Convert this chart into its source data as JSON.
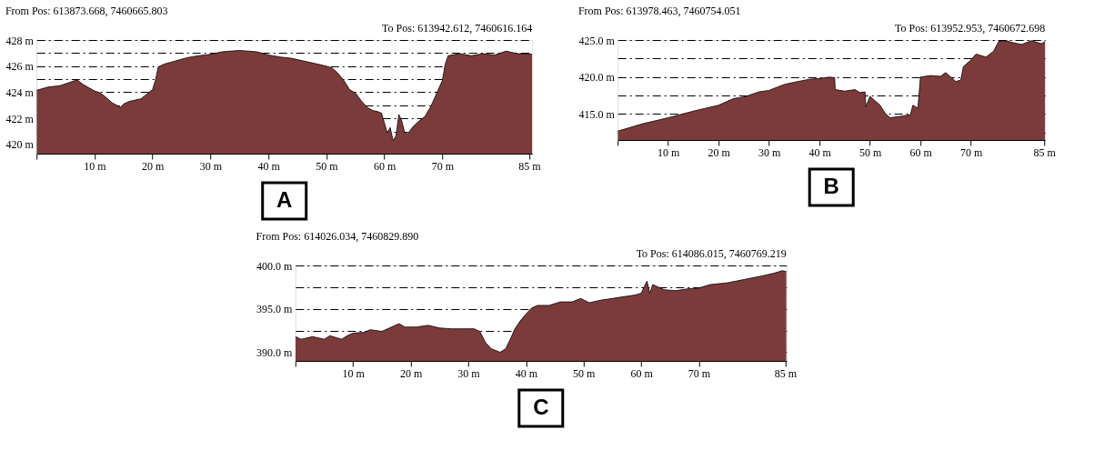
{
  "chart_data": [
    {
      "type": "area",
      "title": "From Pos: 613873.668, 7460665.803",
      "annotations": [
        "To Pos: 613942.612, 7460616.164",
        "A"
      ],
      "grid": "y",
      "x": [
        0,
        2,
        4,
        6,
        7,
        8,
        10,
        11,
        12,
        13,
        14.5,
        15,
        16,
        18,
        19,
        20,
        20.5,
        21,
        22,
        24,
        26,
        28,
        30,
        32,
        35,
        38,
        40,
        42,
        44,
        46,
        48,
        50,
        51,
        52,
        53,
        54,
        55,
        56,
        57,
        58,
        59,
        59.5,
        60,
        60.5,
        61,
        61.5,
        62,
        62.5,
        63,
        63.5,
        64,
        65,
        66,
        67,
        68,
        69,
        70,
        70.5,
        71,
        73,
        75,
        77,
        79,
        81,
        83,
        85,
        85.5
      ],
      "series": [
        {
          "color": "#7b3b3b",
          "values": [
            424.15,
            424.4,
            424.5,
            424.8,
            424.95,
            424.6,
            424.1,
            423.95,
            423.6,
            423.2,
            422.85,
            423.1,
            423.3,
            423.5,
            423.85,
            424.2,
            424.9,
            425.95,
            426.15,
            426.4,
            426.65,
            426.8,
            426.9,
            427.1,
            427.2,
            427.1,
            426.85,
            426.7,
            426.6,
            426.4,
            426.2,
            426.0,
            425.85,
            425.45,
            424.9,
            424.2,
            423.95,
            423.35,
            422.85,
            422.6,
            422.5,
            422.4,
            421.65,
            420.9,
            421.3,
            420.3,
            420.65,
            422.3,
            421.8,
            420.9,
            420.8,
            421.4,
            421.8,
            422.15,
            422.9,
            423.9,
            424.9,
            426.15,
            426.8,
            426.95,
            426.8,
            426.95,
            426.85,
            427.15,
            426.95,
            426.95,
            426.9
          ]
        }
      ],
      "xlim": [
        0,
        85.5
      ],
      "xticks": [
        {
          "value": 0,
          "label": null
        },
        {
          "value": 10,
          "label": "10 m"
        },
        {
          "value": 20,
          "label": "20 m"
        },
        {
          "value": 30,
          "label": "30 m"
        },
        {
          "value": 40,
          "label": "40 m"
        },
        {
          "value": 50,
          "label": "50 m"
        },
        {
          "value": 60,
          "label": "60 m"
        },
        {
          "value": 70,
          "label": "70 m"
        },
        {
          "value": 85,
          "label": "85 m"
        }
      ],
      "ylim": [
        419.3,
        428
      ],
      "yticks": [
        {
          "value": 420,
          "label": "420 m"
        },
        {
          "value": 421,
          "label": null
        },
        {
          "value": 422,
          "label": "422 m"
        },
        {
          "value": 423,
          "label": null
        },
        {
          "value": 424,
          "label": "424 m"
        },
        {
          "value": 425,
          "label": null
        },
        {
          "value": 426,
          "label": "426 m"
        },
        {
          "value": 427,
          "label": null
        },
        {
          "value": 428,
          "label": "428 m"
        }
      ]
    },
    {
      "type": "area",
      "title": "From Pos: 613978.463, 7460754.051",
      "annotations": [
        "To Pos: 613952.953, 7460672.698",
        "B"
      ],
      "grid": "y",
      "x": [
        0,
        5,
        10,
        15,
        20,
        23,
        25,
        28,
        30,
        33,
        35,
        38,
        40,
        42,
        43,
        43.1,
        45,
        47,
        48,
        49,
        49.2,
        50,
        52,
        53,
        54,
        56,
        58,
        58.5,
        59.5,
        60,
        62,
        64,
        65,
        66,
        67,
        68,
        68.5,
        70,
        71,
        73,
        74.5,
        75.5,
        77,
        78,
        80,
        82,
        84,
        84.7
      ],
      "series": [
        {
          "color": "#7b3b3b",
          "values": [
            412.7,
            413.7,
            414.5,
            415.4,
            416.2,
            417.1,
            417.3,
            418.0,
            418.2,
            419.0,
            419.3,
            419.7,
            419.8,
            420.0,
            419.9,
            418.3,
            418.1,
            418.3,
            417.9,
            418.0,
            416.0,
            417.4,
            416.2,
            415.1,
            414.5,
            414.7,
            414.9,
            416.2,
            415.8,
            420.0,
            420.2,
            420.1,
            420.6,
            420.0,
            419.4,
            419.6,
            421.4,
            422.3,
            423.1,
            422.7,
            423.5,
            424.8,
            424.9,
            424.7,
            424.4,
            424.9,
            424.5,
            424.8
          ]
        }
      ],
      "xlim": [
        0,
        84.7
      ],
      "xticks": [
        {
          "value": 0,
          "label": null
        },
        {
          "value": 10,
          "label": "10 m"
        },
        {
          "value": 20,
          "label": "20 m"
        },
        {
          "value": 30,
          "label": "30 m"
        },
        {
          "value": 40,
          "label": "40 m"
        },
        {
          "value": 50,
          "label": "50 m"
        },
        {
          "value": 60,
          "label": "60 m"
        },
        {
          "value": 70,
          "label": "70 m"
        },
        {
          "value": 84.5,
          "label": "85 m"
        }
      ],
      "ylim": [
        411.5,
        425
      ],
      "yticks": [
        {
          "value": 412.5,
          "label": null
        },
        {
          "value": 415,
          "label": "415.0 m"
        },
        {
          "value": 417.5,
          "label": null
        },
        {
          "value": 420,
          "label": "420.0 m"
        },
        {
          "value": 422.5,
          "label": null
        },
        {
          "value": 425,
          "label": "425.0 m"
        }
      ]
    },
    {
      "type": "area",
      "title": "From Pos: 614026.034, 7460829.890",
      "annotations": [
        "To Pos: 614086.015, 7460769.219",
        "C"
      ],
      "grid": "y",
      "x": [
        0,
        1,
        3,
        5,
        6,
        8,
        9,
        10,
        12,
        13,
        15,
        18,
        19,
        21,
        23,
        25,
        27,
        29,
        31,
        32,
        33,
        34,
        35.5,
        36.5,
        37.5,
        38,
        39,
        40,
        41,
        42,
        44,
        46,
        48,
        49.5,
        51,
        53,
        55,
        57,
        59,
        60,
        61,
        61.5,
        62,
        64,
        66,
        68,
        70,
        72,
        75,
        78,
        81,
        83,
        84.5,
        85.2
      ],
      "series": [
        {
          "color": "#7b3b3b",
          "values": [
            391.8,
            391.5,
            391.8,
            391.5,
            391.9,
            391.5,
            391.9,
            392.2,
            392.3,
            392.6,
            392.4,
            393.3,
            392.9,
            392.9,
            393.1,
            392.8,
            392.7,
            392.7,
            392.7,
            392.4,
            391.1,
            390.4,
            390.0,
            390.4,
            391.8,
            392.6,
            393.6,
            394.4,
            395.1,
            395.4,
            395.4,
            395.8,
            395.8,
            396.2,
            395.7,
            396.0,
            396.2,
            396.4,
            396.6,
            396.8,
            398.2,
            396.8,
            397.8,
            397.2,
            397.1,
            397.3,
            397.4,
            397.8,
            398.0,
            398.4,
            398.8,
            399.1,
            399.4,
            399.3
          ]
        }
      ],
      "xlim": [
        0,
        85.2
      ],
      "xticks": [
        {
          "value": 0,
          "label": null
        },
        {
          "value": 10,
          "label": "10 m"
        },
        {
          "value": 20,
          "label": "20 m"
        },
        {
          "value": 30,
          "label": "30 m"
        },
        {
          "value": 40,
          "label": "40 m"
        },
        {
          "value": 50,
          "label": "50 m"
        },
        {
          "value": 60,
          "label": "60 m"
        },
        {
          "value": 70,
          "label": "70 m"
        },
        {
          "value": 85,
          "label": "85 m"
        }
      ],
      "ylim": [
        389,
        400
      ],
      "yticks": [
        {
          "value": 390,
          "label": "390.0 m"
        },
        {
          "value": 392.5,
          "label": null
        },
        {
          "value": 395,
          "label": "395.0 m"
        },
        {
          "value": 397.5,
          "label": null
        },
        {
          "value": 400,
          "label": "400.0 m"
        }
      ]
    }
  ]
}
